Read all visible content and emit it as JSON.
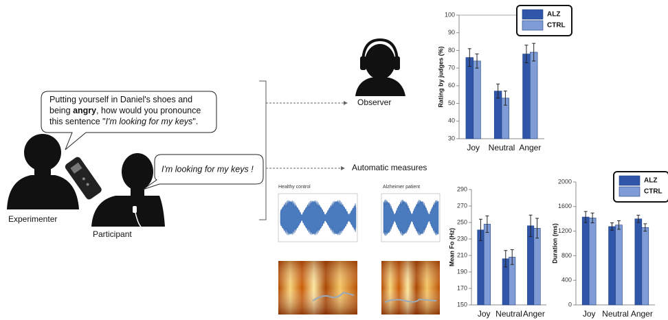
{
  "diagram": {
    "bubble_question": [
      [
        {
          "text": "Putting yourself in Daniel's shoes and"
        }
      ],
      [
        {
          "text": "being "
        },
        {
          "text": "angry",
          "bold": true
        },
        {
          "text": ", how would you pronounce"
        }
      ],
      [
        {
          "text": "this sentence \""
        },
        {
          "text": "I'm looking for my keys",
          "italic": true
        },
        {
          "text": "\"."
        }
      ]
    ],
    "bubble_answer": "I'm looking for my keys !",
    "experimenter": "Experimenter",
    "participant": "Participant",
    "observer": "Observer",
    "automatic_measures": "Automatic measures",
    "healthy_control": "Healthy control",
    "alzheimer_patient": "Alzheimer patient"
  },
  "chart_data": [
    {
      "type": "bar",
      "ylabel": "Rating by judges (%)",
      "categories": [
        "Joy",
        "Neutral",
        "Anger"
      ],
      "ylim": [
        30,
        100
      ],
      "yticks": [
        30,
        40,
        50,
        60,
        70,
        80,
        90,
        100
      ],
      "legend": "top-right",
      "series": [
        {
          "name": "ALZ",
          "color": "#2f56a8",
          "values": [
            76,
            57,
            78
          ],
          "errors": [
            5,
            4,
            5
          ]
        },
        {
          "name": "CTRL",
          "color": "#7f9cd6",
          "values": [
            74,
            53,
            79
          ],
          "errors": [
            4,
            4,
            5
          ]
        }
      ]
    },
    {
      "type": "bar",
      "ylabel": "Mean Fo (Hz)",
      "categories": [
        "Joy",
        "Neutral",
        "Anger"
      ],
      "ylim": [
        150,
        290
      ],
      "yticks": [
        150,
        170,
        190,
        210,
        230,
        250,
        270,
        290
      ],
      "series": [
        {
          "color": "#2f56a8",
          "values": [
            241,
            206,
            246
          ],
          "errors": [
            13,
            10,
            13
          ]
        },
        {
          "color": "#7f9cd6",
          "values": [
            248,
            208,
            243
          ],
          "errors": [
            10,
            9,
            12
          ]
        }
      ]
    },
    {
      "type": "bar",
      "ylabel": "Duration (ms)",
      "categories": [
        "Joy",
        "Neutral",
        "Anger"
      ],
      "ylim": [
        0,
        2000
      ],
      "yticks": [
        0,
        400,
        800,
        1200,
        1600,
        2000
      ],
      "legend": "top-right",
      "series": [
        {
          "name": "ALZ",
          "color": "#2f56a8",
          "values": [
            1430,
            1275,
            1400
          ],
          "errors": [
            90,
            60,
            60
          ]
        },
        {
          "name": "CTRL",
          "color": "#7f9cd6",
          "values": [
            1415,
            1300,
            1260
          ],
          "errors": [
            80,
            70,
            60
          ]
        }
      ]
    }
  ]
}
